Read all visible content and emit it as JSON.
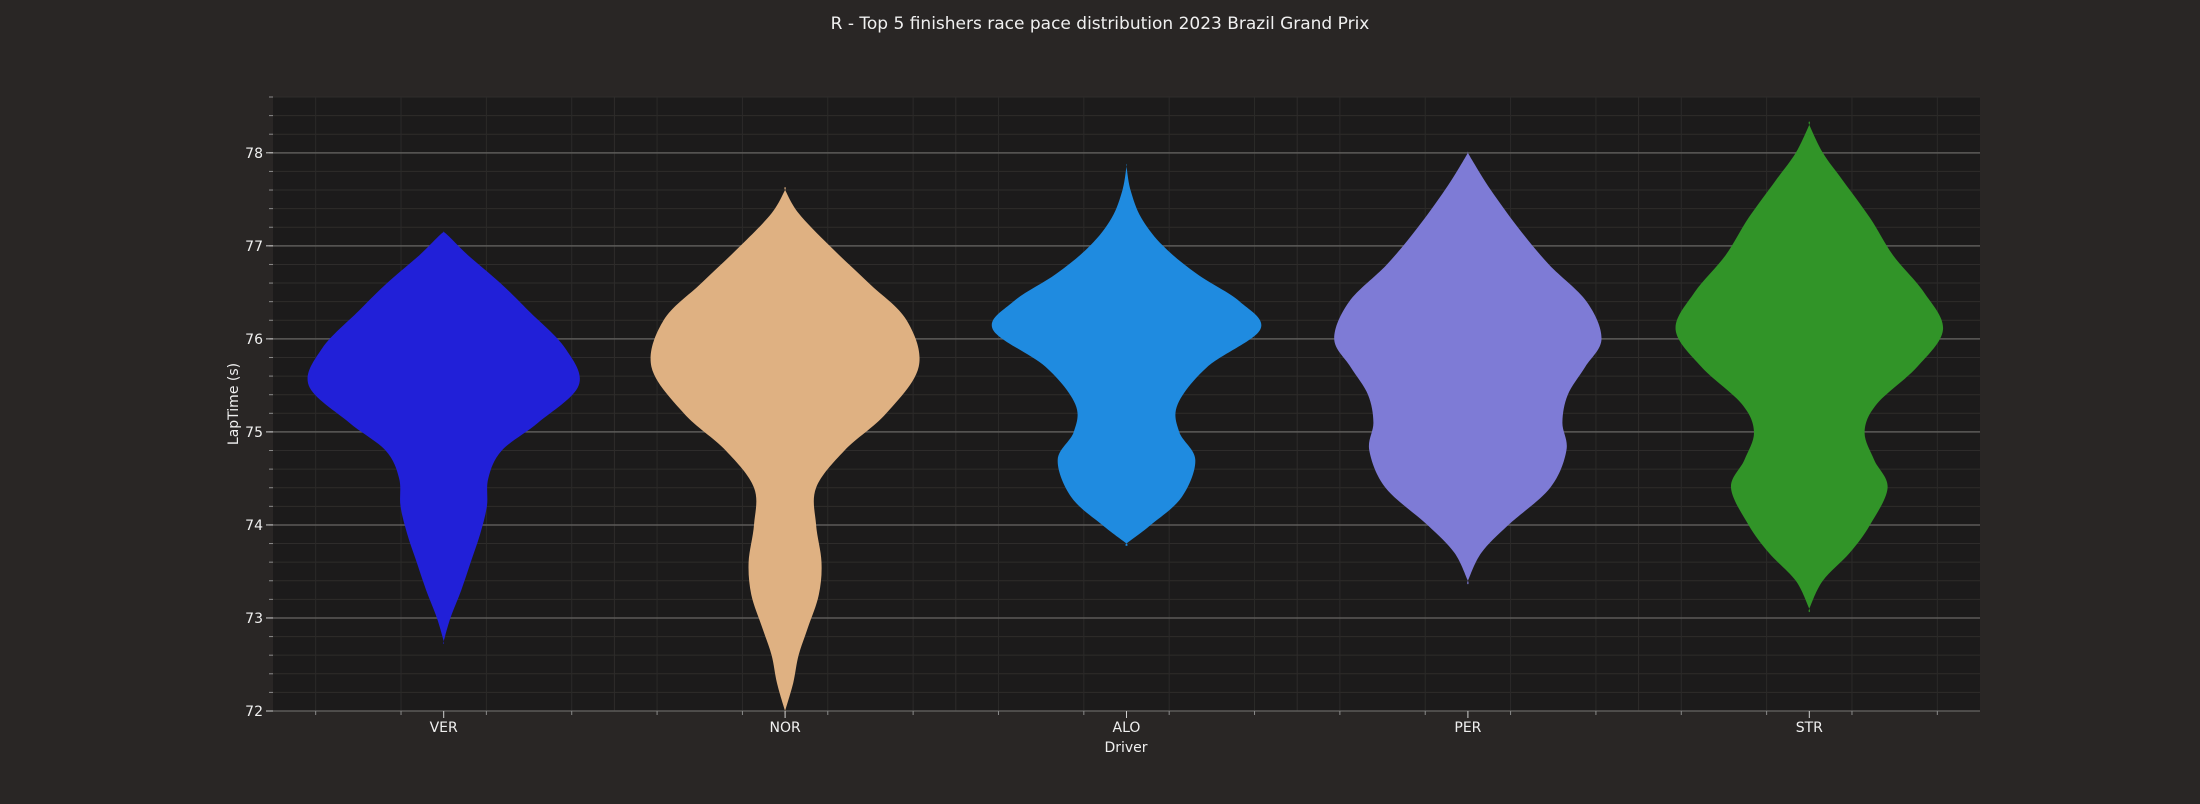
{
  "chart_data": {
    "type": "violin",
    "title": "R - Top 5 finishers race pace distribution 2023 Brazil Grand Prix",
    "xlabel": "Driver",
    "ylabel": "LapTime (s)",
    "categories": [
      "VER",
      "NOR",
      "ALO",
      "PER",
      "STR"
    ],
    "colors": [
      "#2120d8",
      "#dfb182",
      "#1f8be0",
      "#7e7bd6",
      "#319428"
    ],
    "ylim": [
      72,
      78.6
    ],
    "yticks": [
      72,
      73,
      74,
      75,
      76,
      77,
      78
    ],
    "grid": true,
    "legend": "none",
    "series": [
      {
        "name": "VER",
        "y_range": [
          72.75,
          77.15
        ],
        "profile": [
          [
            72.75,
            0.0
          ],
          [
            73.0,
            0.05
          ],
          [
            73.3,
            0.13
          ],
          [
            73.6,
            0.2
          ],
          [
            73.9,
            0.27
          ],
          [
            74.2,
            0.32
          ],
          [
            74.5,
            0.33
          ],
          [
            74.8,
            0.43
          ],
          [
            75.1,
            0.7
          ],
          [
            75.5,
            1.0
          ],
          [
            75.9,
            0.9
          ],
          [
            76.3,
            0.63
          ],
          [
            76.6,
            0.42
          ],
          [
            76.9,
            0.18
          ],
          [
            77.1,
            0.04
          ],
          [
            77.15,
            0.0
          ]
        ]
      },
      {
        "name": "NOR",
        "y_range": [
          72.0,
          77.6
        ],
        "profile": [
          [
            72.0,
            0.0
          ],
          [
            72.3,
            0.06
          ],
          [
            72.6,
            0.1
          ],
          [
            72.9,
            0.17
          ],
          [
            73.25,
            0.25
          ],
          [
            73.6,
            0.27
          ],
          [
            74.0,
            0.23
          ],
          [
            74.4,
            0.23
          ],
          [
            74.8,
            0.44
          ],
          [
            75.2,
            0.75
          ],
          [
            75.7,
            0.99
          ],
          [
            76.2,
            0.9
          ],
          [
            76.6,
            0.62
          ],
          [
            77.0,
            0.33
          ],
          [
            77.35,
            0.1
          ],
          [
            77.6,
            0.0
          ]
        ]
      },
      {
        "name": "ALO",
        "y_range": [
          73.8,
          77.85
        ],
        "profile": [
          [
            73.8,
            0.0
          ],
          [
            74.0,
            0.18
          ],
          [
            74.3,
            0.41
          ],
          [
            74.7,
            0.51
          ],
          [
            75.0,
            0.39
          ],
          [
            75.3,
            0.38
          ],
          [
            75.7,
            0.6
          ],
          [
            76.1,
            0.99
          ],
          [
            76.4,
            0.84
          ],
          [
            76.7,
            0.52
          ],
          [
            77.0,
            0.27
          ],
          [
            77.3,
            0.11
          ],
          [
            77.6,
            0.03
          ],
          [
            77.85,
            0.0
          ]
        ]
      },
      {
        "name": "PER",
        "y_range": [
          73.4,
          78.0
        ],
        "profile": [
          [
            73.4,
            0.0
          ],
          [
            73.7,
            0.1
          ],
          [
            74.0,
            0.3
          ],
          [
            74.4,
            0.61
          ],
          [
            74.8,
            0.73
          ],
          [
            75.1,
            0.7
          ],
          [
            75.4,
            0.74
          ],
          [
            75.7,
            0.87
          ],
          [
            76.0,
            0.99
          ],
          [
            76.4,
            0.88
          ],
          [
            76.8,
            0.6
          ],
          [
            77.2,
            0.37
          ],
          [
            77.6,
            0.17
          ],
          [
            77.9,
            0.04
          ],
          [
            78.0,
            0.0
          ]
        ]
      },
      {
        "name": "STR",
        "y_range": [
          73.1,
          78.3
        ],
        "profile": [
          [
            73.1,
            0.0
          ],
          [
            73.4,
            0.1
          ],
          [
            73.7,
            0.3
          ],
          [
            74.0,
            0.45
          ],
          [
            74.4,
            0.58
          ],
          [
            74.7,
            0.48
          ],
          [
            75.0,
            0.41
          ],
          [
            75.3,
            0.5
          ],
          [
            75.7,
            0.8
          ],
          [
            76.1,
            0.99
          ],
          [
            76.5,
            0.85
          ],
          [
            76.9,
            0.62
          ],
          [
            77.3,
            0.45
          ],
          [
            77.7,
            0.25
          ],
          [
            78.0,
            0.1
          ],
          [
            78.3,
            0.0
          ]
        ]
      }
    ]
  }
}
